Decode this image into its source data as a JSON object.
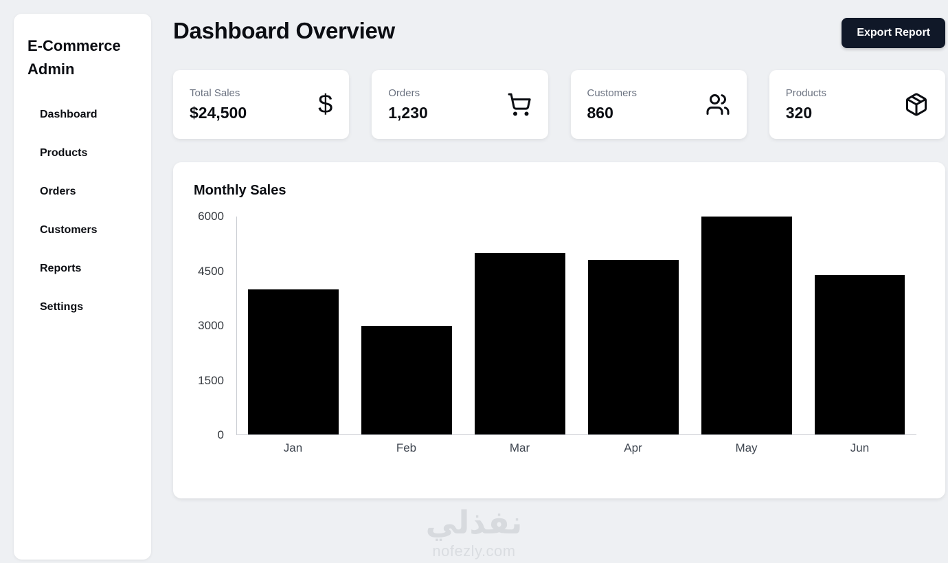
{
  "sidebar": {
    "title": "E-Commerce Admin",
    "items": [
      {
        "label": "Dashboard"
      },
      {
        "label": "Products"
      },
      {
        "label": "Orders"
      },
      {
        "label": "Customers"
      },
      {
        "label": "Reports"
      },
      {
        "label": "Settings"
      }
    ]
  },
  "header": {
    "title": "Dashboard Overview",
    "export_button": "Export Report"
  },
  "stats": [
    {
      "label": "Total Sales",
      "value": "$24,500",
      "icon": "dollar-icon"
    },
    {
      "label": "Orders",
      "value": "1,230",
      "icon": "cart-icon"
    },
    {
      "label": "Customers",
      "value": "860",
      "icon": "users-icon"
    },
    {
      "label": "Products",
      "value": "320",
      "icon": "package-icon"
    }
  ],
  "chart_data": {
    "type": "bar",
    "title": "Monthly Sales",
    "categories": [
      "Jan",
      "Feb",
      "Mar",
      "Apr",
      "May",
      "Jun"
    ],
    "values": [
      4000,
      3000,
      5000,
      4800,
      6000,
      4400
    ],
    "bar_color": "#000000",
    "ylim": [
      0,
      6000
    ],
    "yticks": [
      0,
      1500,
      3000,
      4500,
      6000
    ],
    "xlabel": "",
    "ylabel": "",
    "grid": false,
    "legend": false
  },
  "watermark": {
    "arabic": "نفذلي",
    "latin": "nofezly.com"
  }
}
